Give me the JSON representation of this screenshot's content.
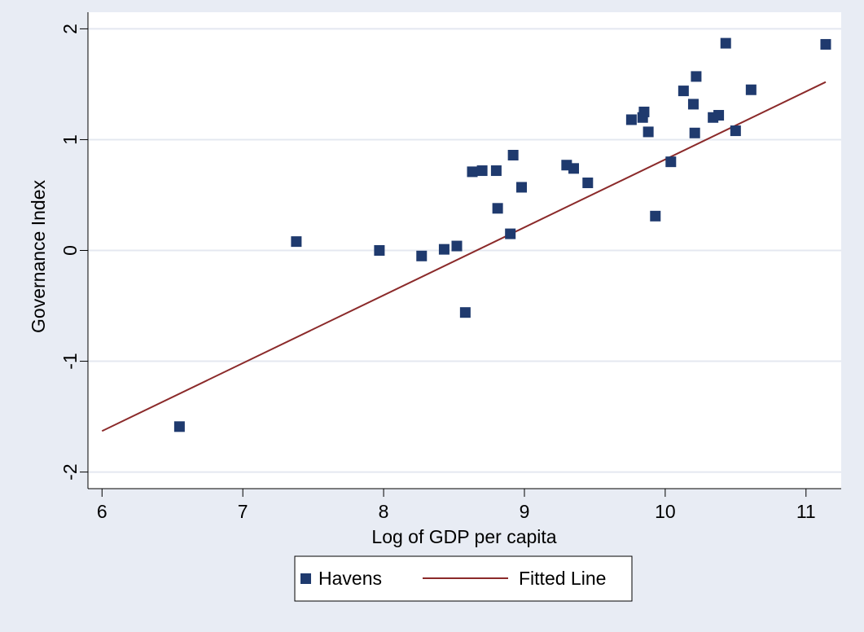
{
  "chart_data": {
    "type": "scatter",
    "xlabel": "Log of GDP per capita",
    "ylabel": "Governance Index",
    "xlim": [
      5.9,
      11.25
    ],
    "ylim": [
      -2.15,
      2.15
    ],
    "xticks": [
      6,
      7,
      8,
      9,
      10,
      11
    ],
    "yticks": [
      -2,
      -1,
      0,
      1,
      2
    ],
    "grid": "horizontal",
    "legend_position": "bottom",
    "colors": {
      "background": "#e8ecf4",
      "plot_background": "#ffffff",
      "grid": "#e4e8f0",
      "marker": "#1f3a6e",
      "line": "#8b2a2a"
    },
    "series": [
      {
        "name": "Havens",
        "type": "scatter",
        "points": [
          [
            6.55,
            -1.59
          ],
          [
            7.38,
            0.08
          ],
          [
            7.97,
            0.0
          ],
          [
            8.27,
            -0.05
          ],
          [
            8.43,
            0.01
          ],
          [
            8.52,
            0.04
          ],
          [
            8.58,
            -0.56
          ],
          [
            8.63,
            0.71
          ],
          [
            8.7,
            0.72
          ],
          [
            8.8,
            0.72
          ],
          [
            8.81,
            0.38
          ],
          [
            8.9,
            0.15
          ],
          [
            8.92,
            0.86
          ],
          [
            8.98,
            0.57
          ],
          [
            9.3,
            0.77
          ],
          [
            9.35,
            0.74
          ],
          [
            9.45,
            0.61
          ],
          [
            9.76,
            1.18
          ],
          [
            9.84,
            1.2
          ],
          [
            9.85,
            1.25
          ],
          [
            9.88,
            1.07
          ],
          [
            9.93,
            0.31
          ],
          [
            10.04,
            0.8
          ],
          [
            10.13,
            1.44
          ],
          [
            10.2,
            1.32
          ],
          [
            10.21,
            1.06
          ],
          [
            10.22,
            1.57
          ],
          [
            10.34,
            1.2
          ],
          [
            10.38,
            1.22
          ],
          [
            10.43,
            1.87
          ],
          [
            10.5,
            1.08
          ],
          [
            10.61,
            1.45
          ],
          [
            11.14,
            1.86
          ]
        ]
      },
      {
        "name": "Fitted Line",
        "type": "line",
        "points": [
          [
            6.0,
            -1.63
          ],
          [
            11.14,
            1.52
          ]
        ]
      }
    ]
  }
}
